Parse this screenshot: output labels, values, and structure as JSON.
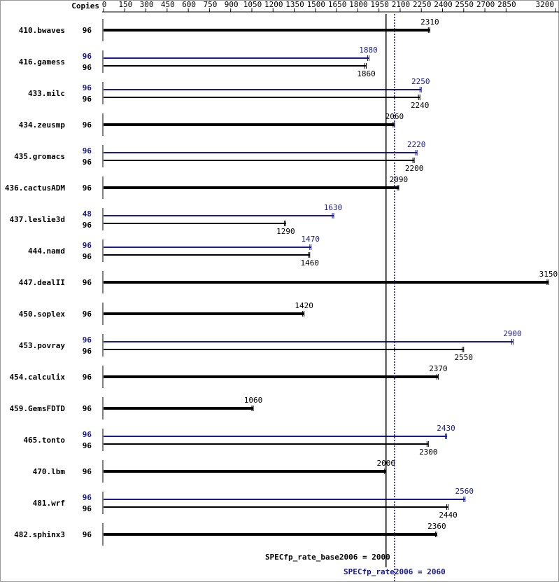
{
  "chart_data": {
    "type": "bar",
    "orientation": "horizontal",
    "copies_label": "Copies",
    "categories": [
      "410.bwaves",
      "416.gamess",
      "433.milc",
      "434.zeusmp",
      "435.gromacs",
      "436.cactusADM",
      "437.leslie3d",
      "444.namd",
      "447.dealII",
      "450.soplex",
      "453.povray",
      "454.calculix",
      "459.GemsFDTD",
      "465.tonto",
      "470.lbm",
      "481.wrf",
      "482.sphinx3"
    ],
    "series": [
      {
        "color": "#000000",
        "copies": [
          96,
          96,
          96,
          96,
          96,
          96,
          96,
          96,
          96,
          96,
          96,
          96,
          96,
          96,
          96,
          96,
          96
        ],
        "values": [
          2310,
          1860,
          2240,
          2060,
          2200,
          2090,
          1290,
          1460,
          3150,
          1420,
          2550,
          2370,
          1060,
          2300,
          2000,
          2440,
          2360
        ]
      },
      {
        "color": "#191996",
        "copies": [
          null,
          96,
          96,
          null,
          96,
          null,
          48,
          96,
          null,
          null,
          96,
          null,
          null,
          96,
          null,
          96,
          null
        ],
        "values": [
          null,
          1880,
          2250,
          null,
          2220,
          null,
          1630,
          1470,
          null,
          null,
          2900,
          null,
          null,
          2430,
          null,
          2560,
          null
        ]
      }
    ],
    "reference_lines": [
      {
        "label": "SPECfp_rate_base2006 = 2000",
        "value": 2000,
        "color": "#000000",
        "style": "solid"
      },
      {
        "label": "SPECfp_rate2006 = 2060",
        "value": 2060,
        "color": "#191996",
        "style": "dotted"
      }
    ],
    "xlim": [
      0,
      3200
    ],
    "xticks": [
      0,
      150,
      300,
      450,
      600,
      750,
      900,
      1050,
      1200,
      1350,
      1500,
      1650,
      1800,
      1950,
      2100,
      2250,
      2400,
      2550,
      2700,
      2850,
      3200
    ]
  }
}
